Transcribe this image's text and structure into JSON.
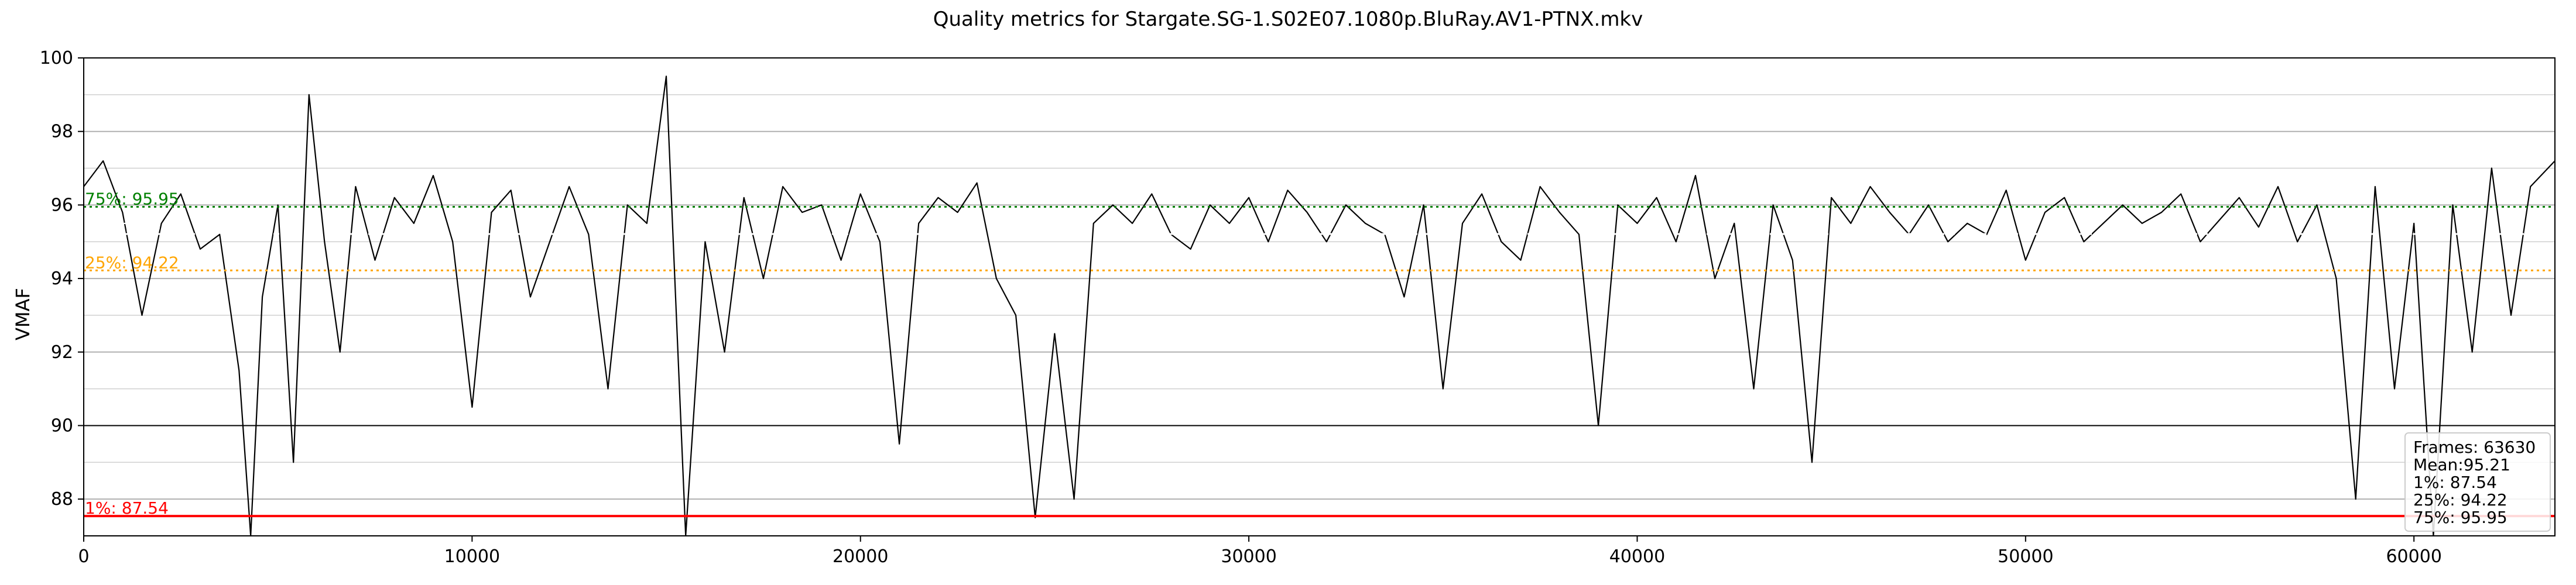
{
  "chart_data": {
    "type": "line",
    "title": "Quality metrics for Stargate.SG-1.S02E07.1080p.BluRay.AV1-PTNX.mkv",
    "ylabel": "VMAF",
    "xlabel": "",
    "xlim": [
      0,
      63630
    ],
    "ylim": [
      87,
      100
    ],
    "x_ticks": [
      0,
      10000,
      20000,
      30000,
      40000,
      50000,
      60000
    ],
    "y_ticks": [
      88,
      90,
      92,
      94,
      96,
      98,
      100
    ],
    "grid": true,
    "series": [
      {
        "color": "#000000",
        "approximate_trace": [
          {
            "x": 0,
            "y": 96.5
          },
          {
            "x": 500,
            "y": 97.2
          },
          {
            "x": 1000,
            "y": 95.8
          },
          {
            "x": 1500,
            "y": 93.0
          },
          {
            "x": 2000,
            "y": 95.5
          },
          {
            "x": 2500,
            "y": 96.3
          },
          {
            "x": 3000,
            "y": 94.8
          },
          {
            "x": 3500,
            "y": 95.2
          },
          {
            "x": 4000,
            "y": 91.5
          },
          {
            "x": 4300,
            "y": 87.0
          },
          {
            "x": 4600,
            "y": 93.5
          },
          {
            "x": 5000,
            "y": 96.0
          },
          {
            "x": 5400,
            "y": 89.0
          },
          {
            "x": 5800,
            "y": 99.0
          },
          {
            "x": 6200,
            "y": 95.0
          },
          {
            "x": 6600,
            "y": 92.0
          },
          {
            "x": 7000,
            "y": 96.5
          },
          {
            "x": 7500,
            "y": 94.5
          },
          {
            "x": 8000,
            "y": 96.2
          },
          {
            "x": 8500,
            "y": 95.5
          },
          {
            "x": 9000,
            "y": 96.8
          },
          {
            "x": 9500,
            "y": 95.0
          },
          {
            "x": 10000,
            "y": 90.5
          },
          {
            "x": 10500,
            "y": 95.8
          },
          {
            "x": 11000,
            "y": 96.4
          },
          {
            "x": 11500,
            "y": 93.5
          },
          {
            "x": 12000,
            "y": 95.0
          },
          {
            "x": 12500,
            "y": 96.5
          },
          {
            "x": 13000,
            "y": 95.2
          },
          {
            "x": 13500,
            "y": 91.0
          },
          {
            "x": 14000,
            "y": 96.0
          },
          {
            "x": 14500,
            "y": 95.5
          },
          {
            "x": 15000,
            "y": 99.5
          },
          {
            "x": 15500,
            "y": 87.0
          },
          {
            "x": 16000,
            "y": 95.0
          },
          {
            "x": 16500,
            "y": 92.0
          },
          {
            "x": 17000,
            "y": 96.2
          },
          {
            "x": 17500,
            "y": 94.0
          },
          {
            "x": 18000,
            "y": 96.5
          },
          {
            "x": 18500,
            "y": 95.8
          },
          {
            "x": 19000,
            "y": 96.0
          },
          {
            "x": 19500,
            "y": 94.5
          },
          {
            "x": 20000,
            "y": 96.3
          },
          {
            "x": 20500,
            "y": 95.0
          },
          {
            "x": 21000,
            "y": 89.5
          },
          {
            "x": 21500,
            "y": 95.5
          },
          {
            "x": 22000,
            "y": 96.2
          },
          {
            "x": 22500,
            "y": 95.8
          },
          {
            "x": 23000,
            "y": 96.6
          },
          {
            "x": 23500,
            "y": 94.0
          },
          {
            "x": 24000,
            "y": 93.0
          },
          {
            "x": 24500,
            "y": 87.5
          },
          {
            "x": 25000,
            "y": 92.5
          },
          {
            "x": 25500,
            "y": 88.0
          },
          {
            "x": 26000,
            "y": 95.5
          },
          {
            "x": 26500,
            "y": 96.0
          },
          {
            "x": 27000,
            "y": 95.5
          },
          {
            "x": 27500,
            "y": 96.3
          },
          {
            "x": 28000,
            "y": 95.2
          },
          {
            "x": 28500,
            "y": 94.8
          },
          {
            "x": 29000,
            "y": 96.0
          },
          {
            "x": 29500,
            "y": 95.5
          },
          {
            "x": 30000,
            "y": 96.2
          },
          {
            "x": 30500,
            "y": 95.0
          },
          {
            "x": 31000,
            "y": 96.4
          },
          {
            "x": 31500,
            "y": 95.8
          },
          {
            "x": 32000,
            "y": 95.0
          },
          {
            "x": 32500,
            "y": 96.0
          },
          {
            "x": 33000,
            "y": 95.5
          },
          {
            "x": 33500,
            "y": 95.2
          },
          {
            "x": 34000,
            "y": 93.5
          },
          {
            "x": 34500,
            "y": 96.0
          },
          {
            "x": 35000,
            "y": 91.0
          },
          {
            "x": 35500,
            "y": 95.5
          },
          {
            "x": 36000,
            "y": 96.3
          },
          {
            "x": 36500,
            "y": 95.0
          },
          {
            "x": 37000,
            "y": 94.5
          },
          {
            "x": 37500,
            "y": 96.5
          },
          {
            "x": 38000,
            "y": 95.8
          },
          {
            "x": 38500,
            "y": 95.2
          },
          {
            "x": 39000,
            "y": 90.0
          },
          {
            "x": 39500,
            "y": 96.0
          },
          {
            "x": 40000,
            "y": 95.5
          },
          {
            "x": 40500,
            "y": 96.2
          },
          {
            "x": 41000,
            "y": 95.0
          },
          {
            "x": 41500,
            "y": 96.8
          },
          {
            "x": 42000,
            "y": 94.0
          },
          {
            "x": 42500,
            "y": 95.5
          },
          {
            "x": 43000,
            "y": 91.0
          },
          {
            "x": 43500,
            "y": 96.0
          },
          {
            "x": 44000,
            "y": 94.5
          },
          {
            "x": 44500,
            "y": 89.0
          },
          {
            "x": 45000,
            "y": 96.2
          },
          {
            "x": 45500,
            "y": 95.5
          },
          {
            "x": 46000,
            "y": 96.5
          },
          {
            "x": 46500,
            "y": 95.8
          },
          {
            "x": 47000,
            "y": 95.2
          },
          {
            "x": 47500,
            "y": 96.0
          },
          {
            "x": 48000,
            "y": 95.0
          },
          {
            "x": 48500,
            "y": 95.5
          },
          {
            "x": 49000,
            "y": 95.2
          },
          {
            "x": 49500,
            "y": 96.4
          },
          {
            "x": 50000,
            "y": 94.5
          },
          {
            "x": 50500,
            "y": 95.8
          },
          {
            "x": 51000,
            "y": 96.2
          },
          {
            "x": 51500,
            "y": 95.0
          },
          {
            "x": 52000,
            "y": 95.5
          },
          {
            "x": 52500,
            "y": 96.0
          },
          {
            "x": 53000,
            "y": 95.5
          },
          {
            "x": 53500,
            "y": 95.8
          },
          {
            "x": 54000,
            "y": 96.3
          },
          {
            "x": 54500,
            "y": 95.0
          },
          {
            "x": 55000,
            "y": 95.6
          },
          {
            "x": 55500,
            "y": 96.2
          },
          {
            "x": 56000,
            "y": 95.4
          },
          {
            "x": 56500,
            "y": 96.5
          },
          {
            "x": 57000,
            "y": 95.0
          },
          {
            "x": 57500,
            "y": 96.0
          },
          {
            "x": 58000,
            "y": 94.0
          },
          {
            "x": 58500,
            "y": 88.0
          },
          {
            "x": 59000,
            "y": 96.5
          },
          {
            "x": 59500,
            "y": 91.0
          },
          {
            "x": 60000,
            "y": 95.5
          },
          {
            "x": 60500,
            "y": 87.0
          },
          {
            "x": 61000,
            "y": 96.0
          },
          {
            "x": 61500,
            "y": 92.0
          },
          {
            "x": 62000,
            "y": 97.0
          },
          {
            "x": 62500,
            "y": 93.0
          },
          {
            "x": 63000,
            "y": 96.5
          },
          {
            "x": 63630,
            "y": 97.2
          }
        ]
      }
    ],
    "reference_lines": [
      {
        "label": "75%: 95.95",
        "value": 95.95,
        "color": "#008000",
        "style": "dotted"
      },
      {
        "label": "Mean: 95.21",
        "value": 95.21,
        "color": "#ffffff",
        "style": "dashed"
      },
      {
        "label": "25%: 94.22",
        "value": 94.22,
        "color": "#ffa500",
        "style": "dotted"
      },
      {
        "label": "1%: 87.54",
        "value": 87.54,
        "color": "#ff0000",
        "style": "solid"
      }
    ],
    "legend": {
      "placement": "bottom-right",
      "lines": [
        "Frames: 63630",
        "Mean:95.21",
        "1%: 87.54",
        "25%: 94.22",
        "75%: 95.95"
      ]
    }
  }
}
